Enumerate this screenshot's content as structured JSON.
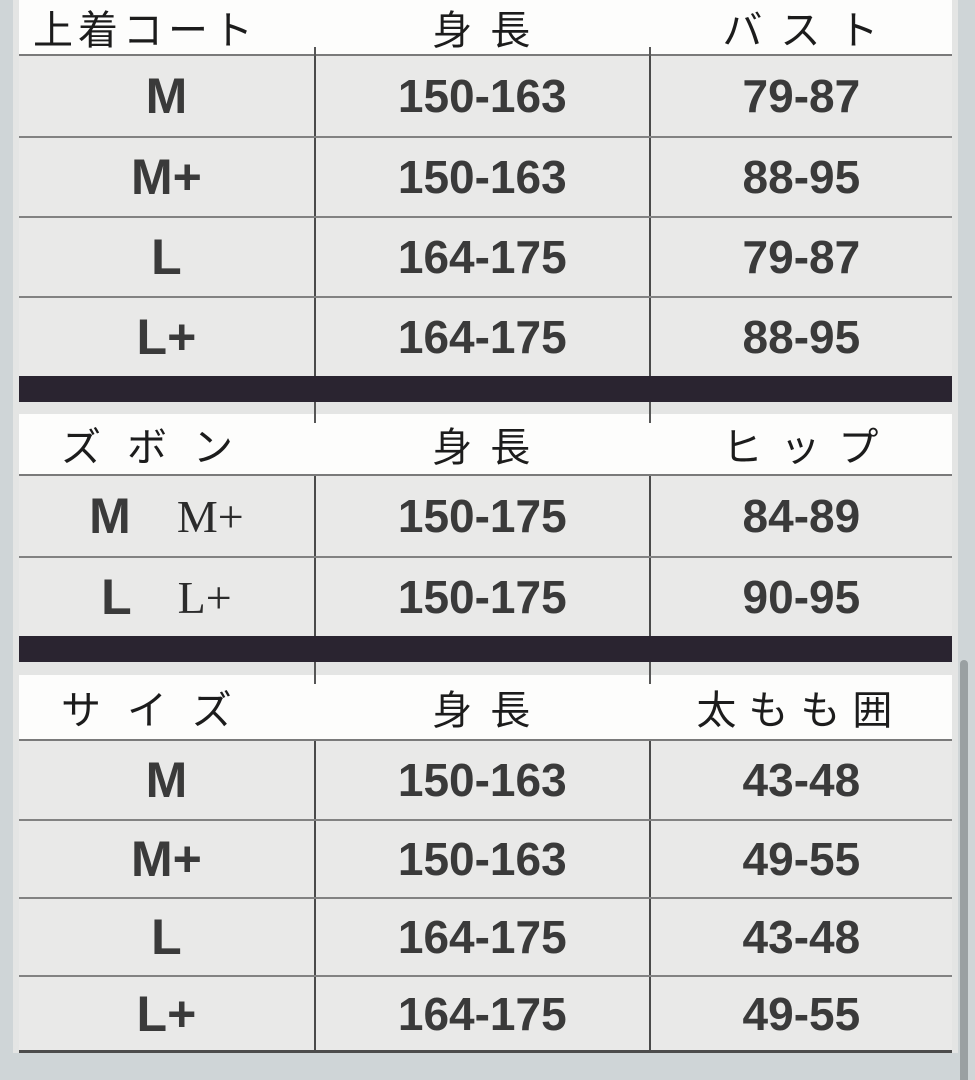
{
  "colors": {
    "pageBg": "#cfd5d7",
    "rowBg": "#e9e9e8",
    "headerBg": "#fdfdfc",
    "dividerBar": "#2a2430",
    "scrollbarThumb": "#9aa0a2"
  },
  "scrollbar": {
    "visible": true,
    "position": "right-bottom"
  },
  "tables": [
    {
      "name": "jacket-coat-size-table",
      "headers": [
        "上着コート",
        "身長",
        "バスト"
      ],
      "rows": [
        {
          "size": "M",
          "height": "150-163",
          "measure": "79-87"
        },
        {
          "size": "M+",
          "height": "150-163",
          "measure": "88-95"
        },
        {
          "size": "L",
          "height": "164-175",
          "measure": "79-87"
        },
        {
          "size": "L+",
          "height": "164-175",
          "measure": "88-95"
        }
      ]
    },
    {
      "name": "pants-size-table",
      "headers": [
        "ズボン",
        "身長",
        "ヒップ"
      ],
      "rows": [
        {
          "size": "M",
          "size_alt": "M+",
          "height": "150-175",
          "measure": "84-89"
        },
        {
          "size": "L",
          "size_alt": "L+",
          "height": "150-175",
          "measure": "90-95"
        }
      ]
    },
    {
      "name": "thigh-size-table",
      "headers": [
        "サイズ",
        "身長",
        "太もも囲"
      ],
      "rows": [
        {
          "size": "M",
          "height": "150-163",
          "measure": "43-48"
        },
        {
          "size": "M+",
          "height": "150-163",
          "measure": "49-55"
        },
        {
          "size": "L",
          "height": "164-175",
          "measure": "43-48"
        },
        {
          "size": "L+",
          "height": "164-175",
          "measure": "49-55"
        }
      ]
    }
  ]
}
